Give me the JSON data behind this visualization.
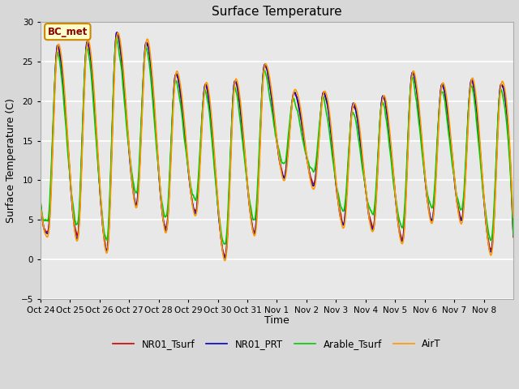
{
  "title": "Surface Temperature",
  "xlabel": "Time",
  "ylabel": "Surface Temperature (C)",
  "ylim": [
    -5,
    30
  ],
  "yticks": [
    -5,
    0,
    5,
    10,
    15,
    20,
    25,
    30
  ],
  "fig_bg_color": "#d8d8d8",
  "plot_bg_color": "#e8e8e8",
  "series_colors": {
    "NR01_Tsurf": "#cc0000",
    "NR01_PRT": "#0000cc",
    "Arable_Tsurf": "#00cc00",
    "AirT": "#ff9900"
  },
  "annotation_text": "BC_met",
  "annotation_bg": "#ffffcc",
  "annotation_border": "#cc8800",
  "x_tick_labels": [
    "Oct 24",
    "Oct 25",
    "Oct 26",
    "Oct 27",
    "Oct 28",
    "Oct 29",
    "Oct 30",
    "Oct 31",
    "Nov 1",
    "Nov 2",
    "Nov 3",
    "Nov 4",
    "Nov 5",
    "Nov 6",
    "Nov 7",
    "Nov 8"
  ],
  "n_days": 16,
  "line_width": 1.2,
  "grid_color": "#ffffff",
  "peak_values": [
    27.0,
    27.5,
    28.5,
    27.5,
    23.5,
    22.0,
    22.5,
    24.5,
    21.0,
    21.0,
    19.5,
    20.5,
    23.5,
    22.0,
    22.5,
    22.0
  ],
  "trough_values": [
    3.5,
    2.8,
    1.2,
    7.0,
    3.8,
    6.0,
    0.2,
    3.5,
    10.5,
    9.5,
    4.5,
    4.0,
    2.5,
    5.0,
    5.0,
    1.0
  ]
}
